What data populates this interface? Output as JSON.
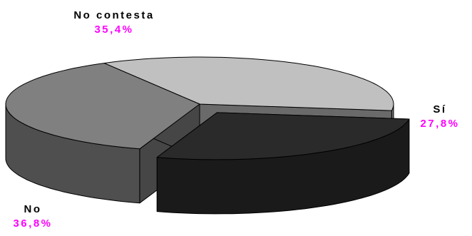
{
  "chart_data": {
    "type": "pie",
    "style": "3d-exploded",
    "title": "",
    "slices": [
      {
        "label": "Sí",
        "value": 27.8,
        "display": "27,8%",
        "color": "#2a2a2a"
      },
      {
        "label": "No contesta",
        "value": 35.4,
        "display": "35,4%",
        "color": "#c0c0c0"
      },
      {
        "label": "No",
        "value": 36.8,
        "display": "36,8%",
        "color": "#808080"
      }
    ],
    "label_color": "#ff00ff",
    "legend": "none",
    "grid": false
  }
}
